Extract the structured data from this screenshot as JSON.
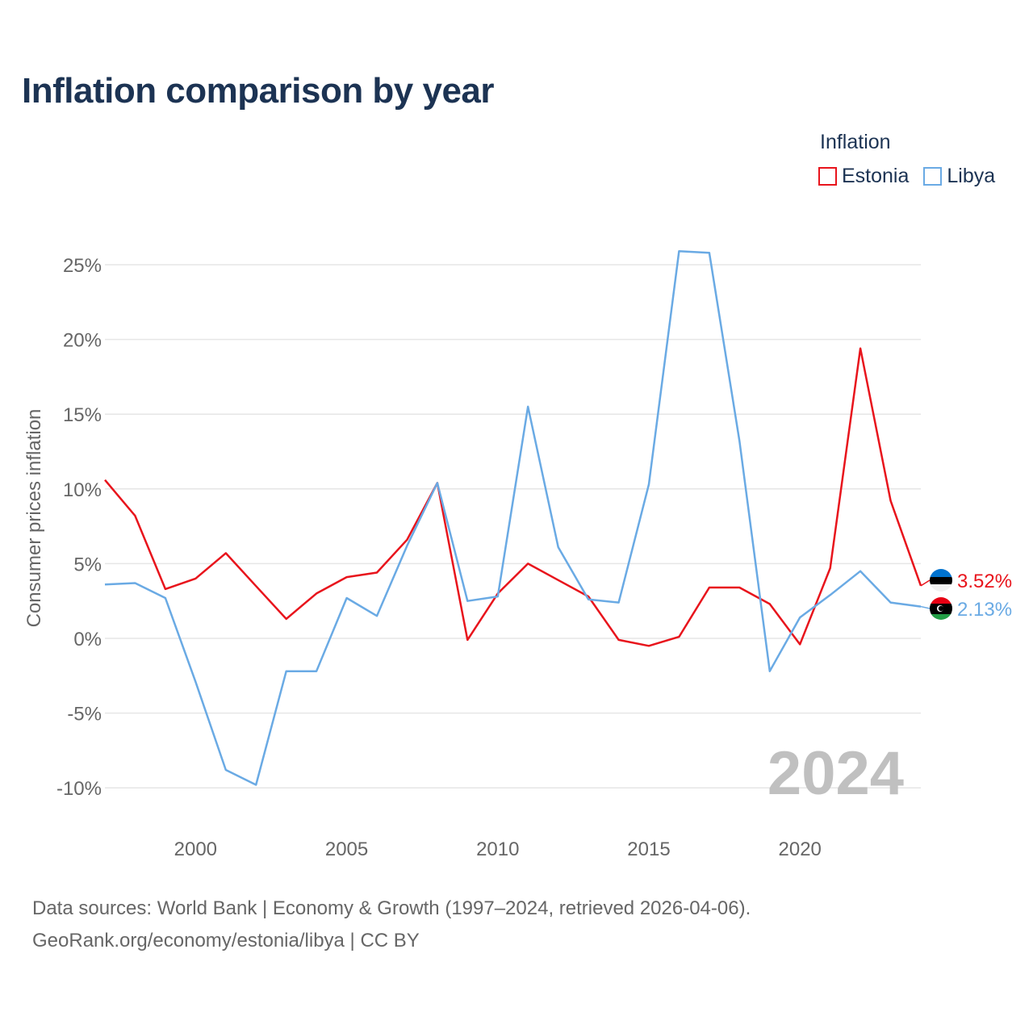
{
  "title": "Inflation comparison by year",
  "legend": {
    "title": "Inflation",
    "items": [
      {
        "label": "Estonia",
        "color": "#e8141c"
      },
      {
        "label": "Libya",
        "color": "#6aaae4"
      }
    ]
  },
  "source": {
    "line1": "Data sources: World Bank | Economy & Growth (1997–2024, retrieved 2026-04-06).",
    "line2": "GeoRank.org/economy/estonia/libya | CC BY"
  },
  "chart_data": {
    "type": "line",
    "title": "Inflation comparison by year",
    "xlabel": "",
    "ylabel": "Consumer prices inflation",
    "xlim": [
      1997,
      2024
    ],
    "ylim": [
      -12,
      27
    ],
    "x": [
      1997,
      1998,
      1999,
      2000,
      2001,
      2002,
      2003,
      2004,
      2005,
      2006,
      2007,
      2008,
      2009,
      2010,
      2011,
      2012,
      2013,
      2014,
      2015,
      2016,
      2017,
      2018,
      2019,
      2020,
      2021,
      2022,
      2023,
      2024
    ],
    "x_ticks": [
      2000,
      2005,
      2010,
      2015,
      2020
    ],
    "y_ticks": [
      25,
      20,
      15,
      10,
      5,
      0,
      -5,
      -10
    ],
    "y_tick_labels": [
      "25%",
      "20%",
      "15%",
      "10%",
      "5%",
      "0%",
      "-5%",
      "-10%"
    ],
    "grid": true,
    "year_watermark": "2024",
    "series": [
      {
        "name": "Estonia",
        "color": "#e8141c",
        "values": [
          10.6,
          8.2,
          3.3,
          4.0,
          5.7,
          3.5,
          1.3,
          3.0,
          4.1,
          4.4,
          6.6,
          10.4,
          -0.1,
          3.0,
          5.0,
          3.9,
          2.8,
          -0.1,
          -0.5,
          0.1,
          3.4,
          3.4,
          2.3,
          -0.4,
          4.7,
          19.4,
          9.2,
          3.52
        ],
        "end_label": "3.52%"
      },
      {
        "name": "Libya",
        "color": "#6aaae4",
        "values": [
          3.6,
          3.7,
          2.7,
          -2.9,
          -8.8,
          -9.8,
          -2.2,
          -2.2,
          2.7,
          1.5,
          6.2,
          10.4,
          2.5,
          2.8,
          15.5,
          6.1,
          2.6,
          2.4,
          10.3,
          25.9,
          25.8,
          13.2,
          -2.2,
          1.4,
          2.9,
          4.5,
          2.4,
          2.13
        ],
        "end_label": "2.13%"
      }
    ]
  }
}
